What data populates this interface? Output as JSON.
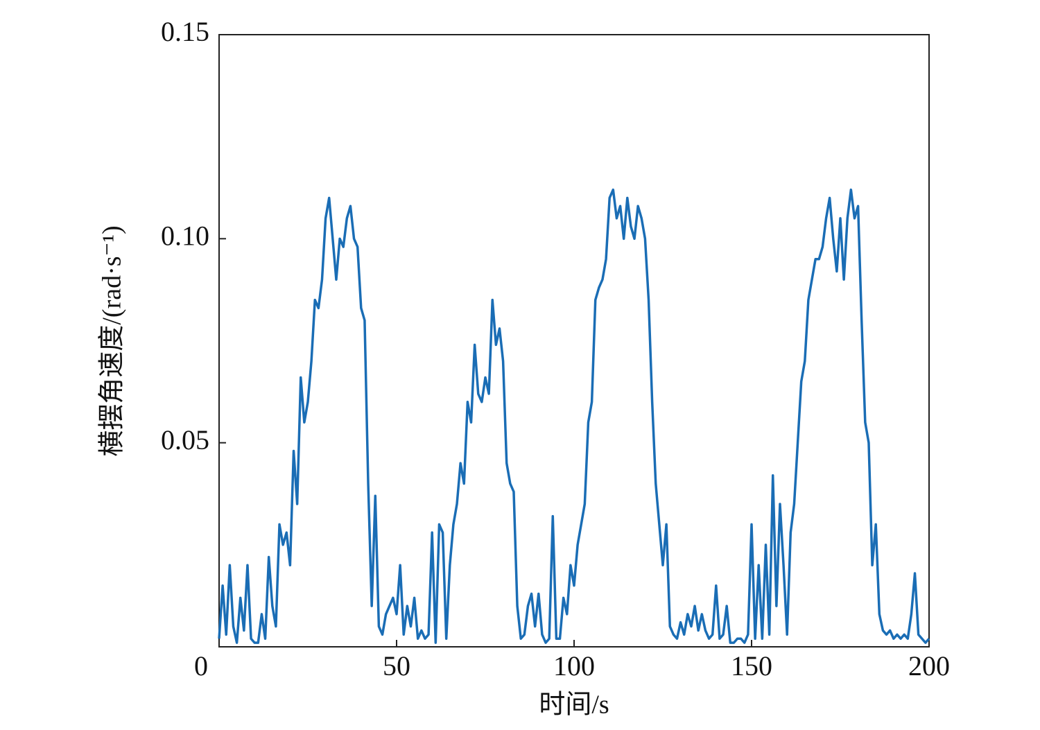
{
  "chart_data": {
    "type": "line",
    "ylabel": "横摆角速度/(rad·s⁻¹)",
    "xlabel": "时间/s",
    "color": "#1a6db5",
    "xlim": [
      0,
      200
    ],
    "xticks": [
      0,
      50,
      100,
      150,
      200
    ],
    "ylim": [
      0,
      0.15
    ],
    "yticks": [
      0.05,
      {
        "value": 0.1,
        "label": "0.10"
      },
      0.15
    ],
    "x": [
      0,
      1,
      2,
      3,
      4,
      5,
      6,
      7,
      8,
      9,
      10,
      11,
      12,
      13,
      14,
      15,
      16,
      17,
      18,
      19,
      20,
      21,
      22,
      23,
      24,
      25,
      26,
      27,
      28,
      29,
      30,
      31,
      32,
      33,
      34,
      35,
      36,
      37,
      38,
      39,
      40,
      41,
      42,
      43,
      44,
      45,
      46,
      47,
      48,
      49,
      50,
      51,
      52,
      53,
      54,
      55,
      56,
      57,
      58,
      59,
      60,
      61,
      62,
      63,
      64,
      65,
      66,
      67,
      68,
      69,
      70,
      71,
      72,
      73,
      74,
      75,
      76,
      77,
      78,
      79,
      80,
      81,
      82,
      83,
      84,
      85,
      86,
      87,
      88,
      89,
      90,
      91,
      92,
      93,
      94,
      95,
      96,
      97,
      98,
      99,
      100,
      101,
      102,
      103,
      104,
      105,
      106,
      107,
      108,
      109,
      110,
      111,
      112,
      113,
      114,
      115,
      116,
      117,
      118,
      119,
      120,
      121,
      122,
      123,
      124,
      125,
      126,
      127,
      128,
      129,
      130,
      131,
      132,
      133,
      134,
      135,
      136,
      137,
      138,
      139,
      140,
      141,
      142,
      143,
      144,
      145,
      146,
      147,
      148,
      149,
      150,
      151,
      152,
      153,
      154,
      155,
      156,
      157,
      158,
      159,
      160,
      161,
      162,
      163,
      164,
      165,
      166,
      167,
      168,
      169,
      170,
      171,
      172,
      173,
      174,
      175,
      176,
      177,
      178,
      179,
      180,
      181,
      182,
      183,
      184,
      185,
      186,
      187,
      188,
      189,
      190,
      191,
      192,
      193,
      194,
      195,
      196,
      197,
      198,
      199,
      200
    ],
    "values": [
      0.002,
      0.015,
      0.003,
      0.02,
      0.005,
      0.001,
      0.012,
      0.004,
      0.02,
      0.002,
      0.001,
      0.001,
      0.008,
      0.002,
      0.022,
      0.01,
      0.005,
      0.03,
      0.025,
      0.028,
      0.02,
      0.048,
      0.035,
      0.066,
      0.055,
      0.06,
      0.07,
      0.085,
      0.083,
      0.09,
      0.105,
      0.11,
      0.1,
      0.09,
      0.1,
      0.098,
      0.105,
      0.108,
      0.1,
      0.098,
      0.083,
      0.08,
      0.04,
      0.01,
      0.037,
      0.005,
      0.003,
      0.008,
      0.01,
      0.012,
      0.008,
      0.02,
      0.003,
      0.01,
      0.005,
      0.012,
      0.002,
      0.004,
      0.002,
      0.003,
      0.028,
      0.001,
      0.03,
      0.028,
      0.002,
      0.02,
      0.03,
      0.035,
      0.045,
      0.04,
      0.06,
      0.055,
      0.074,
      0.062,
      0.06,
      0.066,
      0.062,
      0.085,
      0.074,
      0.078,
      0.07,
      0.045,
      0.04,
      0.038,
      0.01,
      0.002,
      0.003,
      0.01,
      0.013,
      0.005,
      0.013,
      0.003,
      0.001,
      0.002,
      0.032,
      0.002,
      0.002,
      0.012,
      0.008,
      0.02,
      0.015,
      0.025,
      0.03,
      0.035,
      0.055,
      0.06,
      0.085,
      0.088,
      0.09,
      0.095,
      0.11,
      0.112,
      0.105,
      0.108,
      0.1,
      0.11,
      0.103,
      0.1,
      0.108,
      0.105,
      0.1,
      0.085,
      0.06,
      0.04,
      0.03,
      0.02,
      0.03,
      0.005,
      0.003,
      0.002,
      0.006,
      0.003,
      0.008,
      0.005,
      0.01,
      0.004,
      0.008,
      0.004,
      0.002,
      0.003,
      0.015,
      0.002,
      0.003,
      0.01,
      0.001,
      0.001,
      0.002,
      0.002,
      0.001,
      0.003,
      0.03,
      0.002,
      0.02,
      0.002,
      0.025,
      0.003,
      0.042,
      0.01,
      0.035,
      0.02,
      0.003,
      0.028,
      0.035,
      0.05,
      0.065,
      0.07,
      0.085,
      0.09,
      0.095,
      0.095,
      0.098,
      0.105,
      0.11,
      0.1,
      0.092,
      0.105,
      0.09,
      0.105,
      0.112,
      0.105,
      0.108,
      0.08,
      0.055,
      0.05,
      0.02,
      0.03,
      0.008,
      0.004,
      0.003,
      0.004,
      0.002,
      0.003,
      0.002,
      0.003,
      0.002,
      0.008,
      0.018,
      0.003,
      0.002,
      0.001,
      0.002
    ]
  }
}
